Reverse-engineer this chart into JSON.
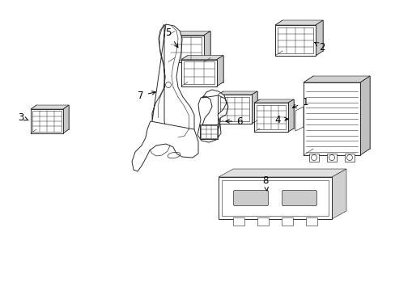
{
  "background_color": "#ffffff",
  "line_color": "#2a2a2a",
  "label_color": "#000000",
  "fig_width": 4.89,
  "fig_height": 3.6,
  "dpi": 100,
  "label_fontsize": 8.5
}
